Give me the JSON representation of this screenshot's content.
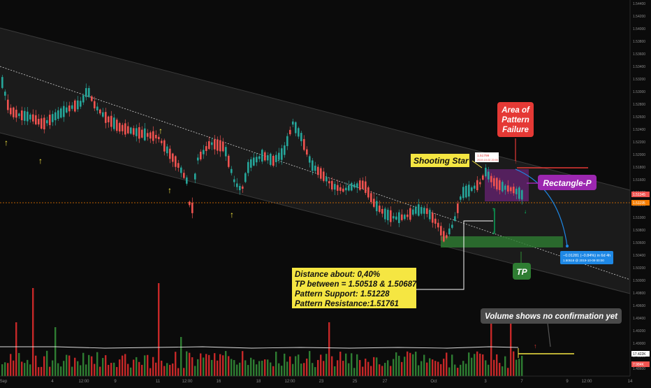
{
  "chart_data": {
    "type": "candlestick",
    "title": "",
    "price_axis": {
      "ticks": [
        "1.54400",
        "1.54200",
        "1.54000",
        "1.53800",
        "1.53600",
        "1.53400",
        "1.53200",
        "1.53000",
        "1.52800",
        "1.52600",
        "1.52400",
        "1.52200",
        "1.52000",
        "1.51800",
        "1.51600",
        "1.51400",
        "1.51200",
        "1.51000",
        "1.50800",
        "1.50600",
        "1.50400",
        "1.50200",
        "1.50000",
        "1.49800",
        "1.49600",
        "1.49400",
        "1.49200",
        "1.49000",
        "1.48800",
        "1.48600"
      ],
      "current_price_label": "1.51345",
      "reference_price_label": "1.51195",
      "volume_labels": [
        "17.422K",
        "7.984K"
      ]
    },
    "time_axis": {
      "labels": [
        "Sep",
        "4",
        "12:00",
        "9",
        "11",
        "12:00",
        "16",
        "18",
        "12:00",
        "23",
        "25",
        "27",
        "Oct",
        "3",
        "7",
        "9",
        "12:00",
        "14"
      ]
    },
    "annotations": {
      "shooting_star": "Shooting Star",
      "failure_line1": "Area of",
      "failure_line2": "Pattern",
      "failure_line3": "Failure",
      "rectangle": "Rectangle-P",
      "tp": "TP",
      "info_line1": "Distance about: 0,40%",
      "info_line2": "TP between = 1.50518 & 1.50687",
      "info_line3": "Pattern Support: 1.51228",
      "info_line4": "Pattern Resistance:1.51761",
      "volume_note": "Volume shows no confirmation yet",
      "measure_top": "1.51799",
      "measure_sub": "2019-10-02 20:00",
      "projection_line1": "−0.01281 (−0.84%) in 6d 4h",
      "projection_line2": "1.50518 @ 2019-10-09  00:00"
    },
    "colors": {
      "bull": "#26a69a",
      "bear": "#ef5350",
      "vol_bull": "#2e7d32",
      "vol_bear": "#c62828",
      "callout_yellow": "#f5e642",
      "failure_red": "#e53935",
      "rect_purple": "#9c27b0",
      "tp_green": "#2e7d32",
      "proj_blue": "#1e88e5",
      "price_line": "#f57c00"
    }
  }
}
